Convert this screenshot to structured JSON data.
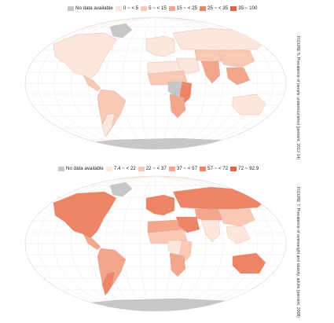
{
  "figure5": {
    "caption": "FIGURE 5: Prevalence of people undernourished (percent, 2012-14)",
    "legend": [
      {
        "label": "No data available",
        "color": "#c7c7c7"
      },
      {
        "label": "0 ~ < 5",
        "color": "#fde6dc"
      },
      {
        "label": "5 ~ < 15",
        "color": "#f9c9b6"
      },
      {
        "label": "15 ~ < 25",
        "color": "#f4a68c"
      },
      {
        "label": "25 ~ < 35",
        "color": "#ee8466"
      },
      {
        "label": "35 ~ 100",
        "color": "#e46545"
      }
    ]
  },
  "figure7": {
    "caption": "FIGURE 7: Prevalence of overweight and obesity, adults (percent, 2008)",
    "legend": [
      {
        "label": "No data available",
        "color": "#c7c7c7"
      },
      {
        "label": "7.4 ~ < 22",
        "color": "#fde6dc"
      },
      {
        "label": "22 ~ < 37",
        "color": "#f9c9b6"
      },
      {
        "label": "37 ~ < 57",
        "color": "#f4a68c"
      },
      {
        "label": "57 ~ < 72",
        "color": "#ee8466"
      },
      {
        "label": "72 ~ 92.9",
        "color": "#e46545"
      }
    ]
  }
}
